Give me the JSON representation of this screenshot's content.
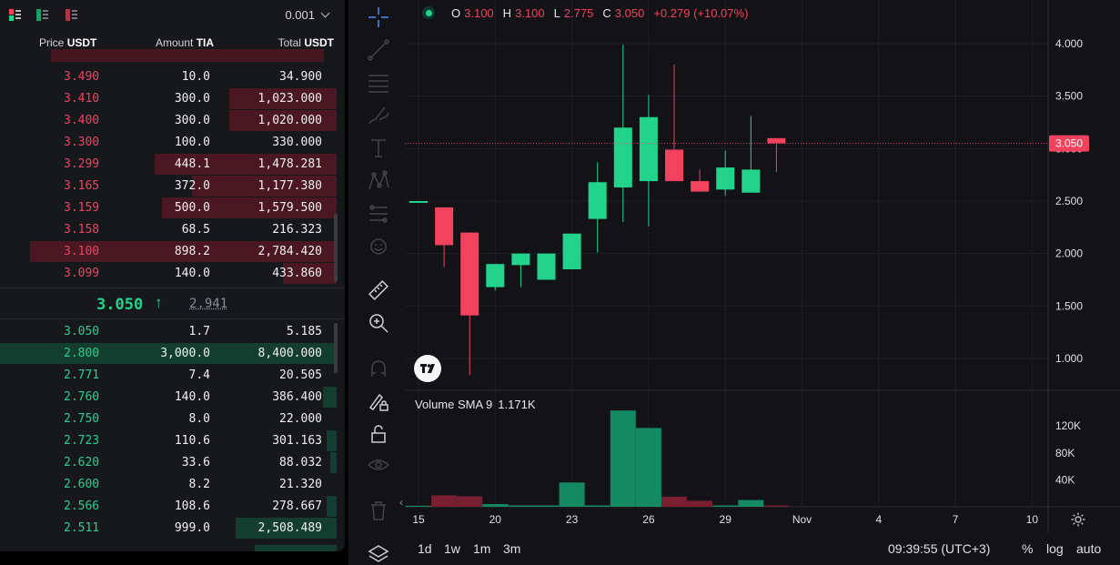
{
  "orderbook": {
    "tick_size": "0.001",
    "headers": {
      "price": "Price",
      "price_unit": "USDT",
      "amount": "Amount",
      "amount_unit": "TIA",
      "total": "Total",
      "total_unit": "USDT"
    },
    "asks": [
      {
        "price": "3.490",
        "amount": "10.0",
        "total": "34.900",
        "depth": 0.0
      },
      {
        "price": "3.410",
        "amount": "300.0",
        "total": "1,023.000",
        "depth": 0.32
      },
      {
        "price": "3.400",
        "amount": "300.0",
        "total": "1,020.000",
        "depth": 0.32
      },
      {
        "price": "3.300",
        "amount": "100.0",
        "total": "330.000",
        "depth": 0.0
      },
      {
        "price": "3.299",
        "amount": "448.1",
        "total": "1,478.281",
        "depth": 0.54
      },
      {
        "price": "3.165",
        "amount": "372.0",
        "total": "1,177.380",
        "depth": 0.43
      },
      {
        "price": "3.159",
        "amount": "500.0",
        "total": "1,579.500",
        "depth": 0.52
      },
      {
        "price": "3.158",
        "amount": "68.5",
        "total": "216.323",
        "depth": 0.0
      },
      {
        "price": "3.100",
        "amount": "898.2",
        "total": "2,784.420",
        "depth": 0.91
      },
      {
        "price": "3.099",
        "amount": "140.0",
        "total": "433.860",
        "depth": 0.16
      }
    ],
    "last_price": "3.050",
    "mark_price": "2.941",
    "bids": [
      {
        "price": "3.050",
        "amount": "1.7",
        "total": "5.185",
        "depth": 0.0
      },
      {
        "price": "2.800",
        "amount": "3,000.0",
        "total": "8,400.000",
        "depth": 1.0
      },
      {
        "price": "2.771",
        "amount": "7.4",
        "total": "20.505",
        "depth": 0.0
      },
      {
        "price": "2.760",
        "amount": "140.0",
        "total": "386.400",
        "depth": 0.04
      },
      {
        "price": "2.750",
        "amount": "8.0",
        "total": "22.000",
        "depth": 0.0
      },
      {
        "price": "2.723",
        "amount": "110.6",
        "total": "301.163",
        "depth": 0.03
      },
      {
        "price": "2.620",
        "amount": "33.6",
        "total": "88.032",
        "depth": 0.02
      },
      {
        "price": "2.600",
        "amount": "8.2",
        "total": "21.320",
        "depth": 0.0
      },
      {
        "price": "2.566",
        "amount": "108.6",
        "total": "278.667",
        "depth": 0.03
      },
      {
        "price": "2.511",
        "amount": "999.0",
        "total": "2,508.489",
        "depth": 0.3
      }
    ]
  },
  "legend": {
    "o_label": "O",
    "o": "3.100",
    "h_label": "H",
    "h": "3.100",
    "l_label": "L",
    "l": "2.775",
    "c_label": "C",
    "c": "3.050",
    "change": "+0.279 (+10.07%)"
  },
  "volume_legend": {
    "label": "Volume SMA 9",
    "value": "1.171K"
  },
  "chart_data": {
    "type": "candlestick",
    "x_ticks": [
      "15",
      "20",
      "23",
      "26",
      "29",
      "Nov",
      "4",
      "7",
      "10"
    ],
    "price_ticks": [
      "4.000",
      "3.500",
      "3.000",
      "2.500",
      "2.000",
      "1.500",
      "1.000"
    ],
    "price_range": [
      0.8,
      4.2
    ],
    "current_price": "3.050",
    "volume_ticks": [
      "120K",
      "80K",
      "40K"
    ],
    "volume_range": [
      0,
      150000
    ],
    "candles": [
      {
        "o": 2.5,
        "h": 2.5,
        "l": 2.5,
        "c": 2.5,
        "v": 1500
      },
      {
        "o": 2.44,
        "h": 2.44,
        "l": 1.87,
        "c": 2.08,
        "v": 17000
      },
      {
        "o": 2.2,
        "h": 2.2,
        "l": 0.84,
        "c": 1.41,
        "v": 15500
      },
      {
        "o": 1.68,
        "h": 1.9,
        "l": 1.65,
        "c": 1.9,
        "v": 4000
      },
      {
        "o": 1.89,
        "h": 2.0,
        "l": 1.68,
        "c": 2.0,
        "v": 2000
      },
      {
        "o": 1.75,
        "h": 2.0,
        "l": 1.75,
        "c": 2.0,
        "v": 2000
      },
      {
        "o": 1.85,
        "h": 2.19,
        "l": 1.85,
        "c": 2.19,
        "v": 36000
      },
      {
        "o": 2.33,
        "h": 2.87,
        "l": 2.01,
        "c": 2.68,
        "v": 2000
      },
      {
        "o": 2.63,
        "h": 3.99,
        "l": 2.3,
        "c": 3.2,
        "v": 143000
      },
      {
        "o": 2.69,
        "h": 3.51,
        "l": 2.26,
        "c": 3.3,
        "v": 117000
      },
      {
        "o": 2.99,
        "h": 3.8,
        "l": 2.69,
        "c": 2.69,
        "v": 15000
      },
      {
        "o": 2.69,
        "h": 2.8,
        "l": 2.59,
        "c": 2.59,
        "v": 9000
      },
      {
        "o": 2.61,
        "h": 2.98,
        "l": 2.55,
        "c": 2.82,
        "v": 2000
      },
      {
        "o": 2.58,
        "h": 3.31,
        "l": 2.58,
        "c": 2.8,
        "v": 10000
      },
      {
        "o": 3.1,
        "h": 3.1,
        "l": 2.775,
        "c": 3.05,
        "v": 2000
      }
    ]
  },
  "bottom": {
    "timeframes": [
      "1d",
      "1w",
      "1m",
      "3m"
    ],
    "clock": "09:39:55 (UTC+3)",
    "percent": "%",
    "log": "log",
    "auto": "auto"
  },
  "colors": {
    "up": "#22d48b",
    "down": "#f2425e",
    "vol_up": "#138a62",
    "vol_down": "#7a1f32"
  }
}
